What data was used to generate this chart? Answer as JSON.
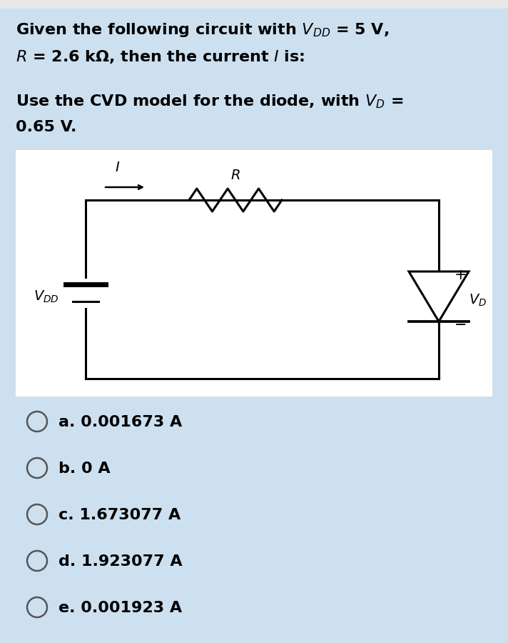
{
  "bg_color": "#cde0f0",
  "circuit_bg": "#ffffff",
  "text_color": "#000000",
  "title_line1": "Given the following circuit with $V_{DD}$ = 5 V,",
  "title_line2": "$R$ = 2.6 kΩ, then the current $I$ is:",
  "subtitle_line1": "Use the CVD model for the diode, with $V_D$ =",
  "subtitle_line2": "0.65 V.",
  "options": [
    "a. 0.001673 A",
    "b. 0 A",
    "c. 1.673077 A",
    "d. 1.923077 A",
    "e. 0.001923 A"
  ],
  "font_size_main": 16,
  "font_size_options": 16
}
